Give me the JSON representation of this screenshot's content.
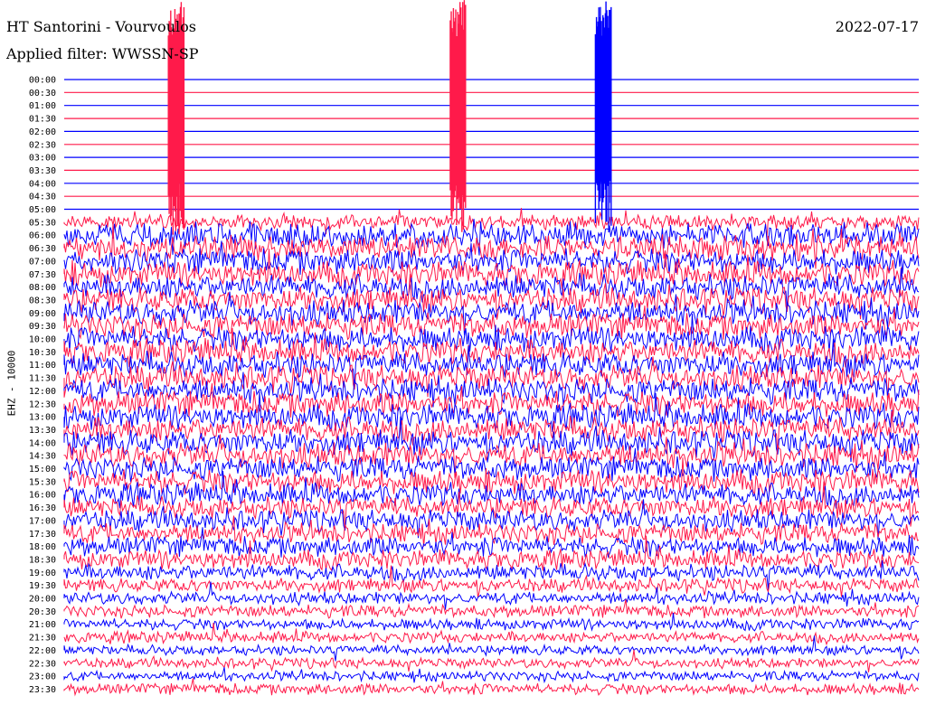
{
  "header": {
    "station": "HT Santorini - Vourvoulos",
    "date": "2022-07-17",
    "filter": "Applied filter: WWSSN-SP"
  },
  "channel_label": "EHZ - 10000",
  "colors": {
    "line_a": "#0000ff",
    "line_b": "#ff1a4a",
    "background": "#ffffff"
  },
  "chart_data": {
    "type": "line",
    "title": "HT Santorini - Vourvoulos",
    "subtitle": "Applied filter: WWSSN-SP",
    "ylabel": "EHZ - 10000",
    "row_labels": [
      "00:00",
      "00:30",
      "01:00",
      "01:30",
      "02:00",
      "02:30",
      "03:00",
      "03:30",
      "04:00",
      "04:30",
      "05:00",
      "05:30",
      "06:00",
      "06:30",
      "07:00",
      "07:30",
      "08:00",
      "08:30",
      "09:00",
      "09:30",
      "10:00",
      "10:30",
      "11:00",
      "11:30",
      "12:00",
      "12:30",
      "13:00",
      "13:30",
      "14:00",
      "14:30",
      "15:00",
      "15:30",
      "16:00",
      "16:30",
      "17:00",
      "17:30",
      "18:00",
      "18:30",
      "19:00",
      "19:30",
      "20:00",
      "20:30",
      "21:00",
      "21:30",
      "22:00",
      "22:30",
      "23:00",
      "23:30"
    ],
    "row_colors": [
      "blue",
      "red"
    ],
    "noise_level_by_row": [
      0,
      0,
      0,
      0,
      0,
      0,
      0,
      0,
      0,
      0,
      0,
      0.6,
      1,
      1,
      1,
      1,
      1,
      1,
      1,
      1,
      1,
      1,
      1,
      1,
      1,
      1,
      1,
      1,
      1,
      1,
      0.95,
      0.95,
      0.9,
      0.85,
      0.85,
      0.8,
      0.8,
      0.75,
      0.65,
      0.55,
      0.5,
      0.5,
      0.45,
      0.45,
      0.4,
      0.4,
      0.4,
      0.45
    ],
    "events": [
      {
        "row": "00:00",
        "fraction_of_row": 0.13,
        "color": "red"
      },
      {
        "row": "00:00",
        "fraction_of_row": 0.46,
        "color": "red"
      },
      {
        "row": "00:30",
        "fraction_of_row": 0.63,
        "color": "blue"
      }
    ]
  }
}
